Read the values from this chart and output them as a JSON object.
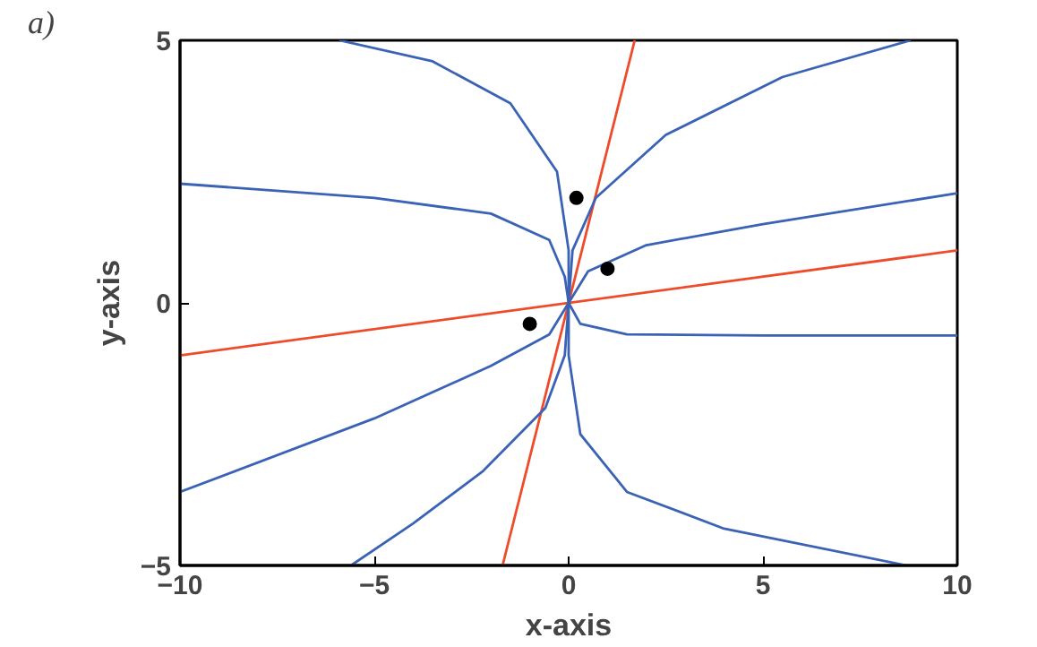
{
  "chart_data": {
    "type": "line",
    "xlabel": "x-axis",
    "ylabel": "y-axis",
    "annotations": [
      "a)"
    ],
    "xlim": [
      -10,
      10
    ],
    "xticks": [
      -10,
      -5,
      0,
      5,
      10
    ],
    "ylim": [
      -5,
      5
    ],
    "yticks": [
      -5,
      0,
      5
    ],
    "grid": false,
    "series": [
      {
        "color": "#ee4b2b",
        "x": [
          -10,
          10
        ],
        "values": [
          -1.0,
          1.0
        ]
      },
      {
        "color": "#ee4b2b",
        "x": [
          -1.7,
          1.7
        ],
        "values": [
          -5,
          5
        ]
      },
      {
        "color": "#3a62b5",
        "x": [
          -10,
          -5,
          -2,
          -0.5,
          -0.1,
          0,
          0.3,
          1.5,
          5,
          10
        ],
        "values": [
          2.27,
          2.0,
          1.7,
          1.2,
          0.5,
          0,
          -0.4,
          -0.6,
          -0.62,
          -0.62
        ]
      },
      {
        "color": "#3a62b5",
        "x": [
          -5.9,
          -3.5,
          -1.5,
          -0.3,
          0,
          0,
          0,
          0.3,
          1.5,
          4,
          8.7
        ],
        "values": [
          5,
          4.6,
          3.8,
          2.5,
          1,
          0,
          -1,
          -2.5,
          -3.6,
          -4.3,
          -5
        ]
      },
      {
        "color": "#3a62b5",
        "x": [
          8.8,
          5.5,
          2.5,
          0.7,
          0.1,
          0,
          -0.1,
          -0.6,
          -2.2,
          -4,
          -5.6
        ],
        "values": [
          5,
          4.3,
          3.2,
          2,
          1,
          0,
          -1,
          -2,
          -3.2,
          -4.2,
          -5
        ]
      },
      {
        "color": "#3a62b5",
        "x": [
          10,
          5,
          2,
          0.5,
          0,
          -0.5,
          -2,
          -5,
          -10
        ],
        "values": [
          2.09,
          1.5,
          1.1,
          0.6,
          0,
          -0.6,
          -1.2,
          -2.2,
          -3.6
        ]
      },
      {
        "type": "scatter",
        "marker": "circle",
        "color": "#000000",
        "x": [
          0.2,
          1.0,
          -1.0
        ],
        "values": [
          2.0,
          0.65,
          -0.4
        ]
      }
    ]
  }
}
